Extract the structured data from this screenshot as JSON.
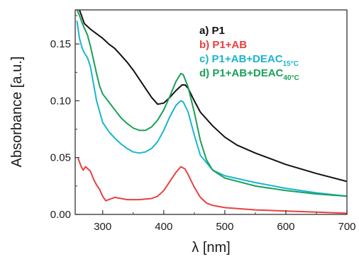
{
  "chart_data": {
    "type": "line",
    "xlabel": "λ [nm]",
    "ylabel": "Absorbance [a.u.]",
    "xlim": [
      255,
      700
    ],
    "ylim": [
      0.0,
      0.18
    ],
    "xticks": [
      300,
      400,
      500,
      600,
      700
    ],
    "yticks": [
      0.0,
      0.05,
      0.1,
      0.15
    ],
    "xtick_labels": [
      "300",
      "400",
      "500",
      "600",
      "700"
    ],
    "ytick_labels": [
      "0.00",
      "0.05",
      "0.10",
      "0.15"
    ],
    "grid": false,
    "legend_position": "top-right",
    "series": [
      {
        "name": "a) P1",
        "label_main": "a) P1",
        "label_sub": "",
        "color": "#111111",
        "x": [
          262,
          270,
          280,
          290,
          300,
          310,
          320,
          330,
          340,
          350,
          360,
          370,
          380,
          390,
          400,
          410,
          420,
          430,
          435,
          440,
          450,
          460,
          480,
          500,
          520,
          550,
          600,
          650,
          700
        ],
        "y": [
          0.18,
          0.168,
          0.163,
          0.159,
          0.155,
          0.15,
          0.146,
          0.14,
          0.134,
          0.127,
          0.119,
          0.111,
          0.103,
          0.097,
          0.098,
          0.103,
          0.109,
          0.114,
          0.114,
          0.111,
          0.1,
          0.09,
          0.078,
          0.068,
          0.061,
          0.054,
          0.044,
          0.036,
          0.029
        ]
      },
      {
        "name": "b) P1+AB",
        "label_main": "b) P1+AB",
        "label_sub": "",
        "color": "#e8403f",
        "x": [
          260,
          265,
          268,
          272,
          276,
          280,
          285,
          290,
          295,
          300,
          305,
          310,
          320,
          330,
          340,
          360,
          380,
          390,
          400,
          410,
          420,
          428,
          435,
          440,
          450,
          460,
          470,
          480,
          500,
          550,
          600,
          650,
          700
        ],
        "y": [
          0.049,
          0.042,
          0.039,
          0.042,
          0.04,
          0.038,
          0.031,
          0.026,
          0.022,
          0.016,
          0.012,
          0.013,
          0.015,
          0.014,
          0.013,
          0.013,
          0.014,
          0.016,
          0.021,
          0.029,
          0.037,
          0.042,
          0.04,
          0.035,
          0.024,
          0.015,
          0.01,
          0.008,
          0.006,
          0.004,
          0.003,
          0.002,
          0.001
        ]
      },
      {
        "name": "c) P1+AB+DEAC15°C",
        "label_main": "c) P1+AB+DEAC",
        "label_sub": "15°C",
        "color": "#1ab4cf",
        "x": [
          258,
          262,
          266,
          270,
          275,
          280,
          290,
          300,
          310,
          320,
          330,
          340,
          350,
          360,
          370,
          380,
          390,
          400,
          410,
          420,
          428,
          432,
          440,
          450,
          460,
          480,
          500,
          550,
          600,
          650,
          700
        ],
        "y": [
          0.17,
          0.155,
          0.147,
          0.142,
          0.138,
          0.13,
          0.1,
          0.081,
          0.073,
          0.067,
          0.062,
          0.058,
          0.055,
          0.054,
          0.055,
          0.058,
          0.064,
          0.074,
          0.086,
          0.096,
          0.1,
          0.099,
          0.09,
          0.07,
          0.052,
          0.039,
          0.034,
          0.028,
          0.023,
          0.019,
          0.016
        ]
      },
      {
        "name": "d) P1+AB+DEAC40°C",
        "label_main": "d) P1+AB+DEAC",
        "label_sub": "40°C",
        "color": "#1aa05a",
        "x": [
          258,
          262,
          266,
          270,
          275,
          280,
          285,
          290,
          295,
          300,
          310,
          320,
          330,
          340,
          350,
          360,
          370,
          380,
          390,
          400,
          410,
          420,
          428,
          432,
          440,
          450,
          460,
          470,
          480,
          500,
          550,
          600,
          650,
          700
        ],
        "y": [
          0.18,
          0.175,
          0.169,
          0.164,
          0.158,
          0.148,
          0.136,
          0.124,
          0.113,
          0.106,
          0.099,
          0.092,
          0.085,
          0.08,
          0.076,
          0.074,
          0.074,
          0.077,
          0.083,
          0.092,
          0.104,
          0.117,
          0.124,
          0.123,
          0.112,
          0.09,
          0.065,
          0.048,
          0.039,
          0.032,
          0.025,
          0.021,
          0.018,
          0.016
        ]
      }
    ]
  }
}
